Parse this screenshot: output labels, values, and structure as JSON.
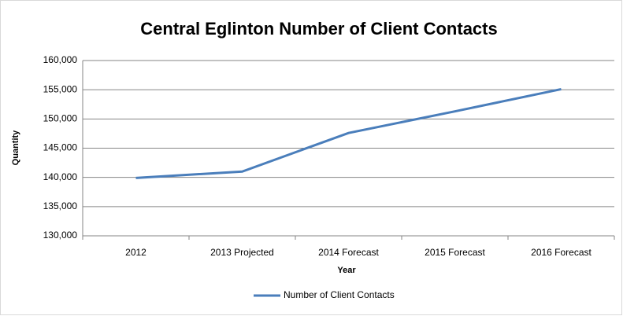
{
  "chart_data": {
    "type": "line",
    "title": "Central Eglinton Number of Client Contacts",
    "x_label": "Year",
    "y_label": "Quantity",
    "categories": [
      "2012",
      "2013 Projected",
      "2014 Forecast",
      "2015 Forecast",
      "2016 Forecast"
    ],
    "series": [
      {
        "name": "Number of Client Contacts",
        "color": "#4a7ebb",
        "values": [
          139900,
          141000,
          147600,
          151300,
          155100
        ]
      }
    ],
    "ylim": [
      130000,
      160000
    ],
    "yticks": [
      {
        "value": 130000,
        "label": "130,000"
      },
      {
        "value": 135000,
        "label": "135,000"
      },
      {
        "value": 140000,
        "label": "140,000"
      },
      {
        "value": 145000,
        "label": "145,000"
      },
      {
        "value": 150000,
        "label": "150,000"
      },
      {
        "value": 155000,
        "label": "155,000"
      },
      {
        "value": 160000,
        "label": "160,000"
      }
    ],
    "grid": true,
    "legend": "bottom"
  }
}
